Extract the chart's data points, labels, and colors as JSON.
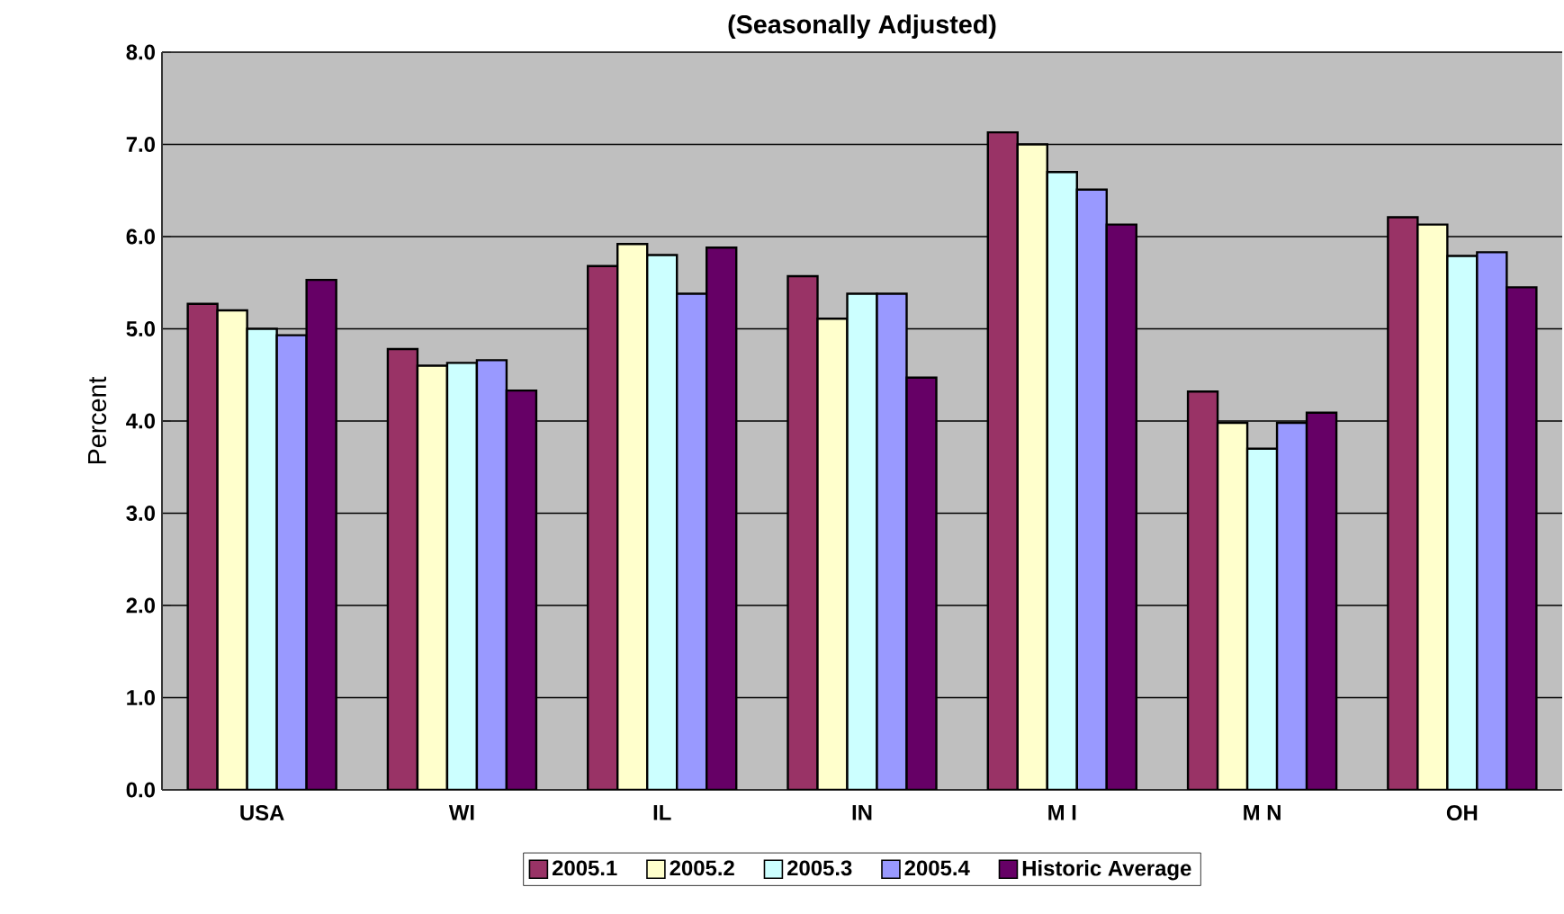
{
  "chart_data": {
    "type": "bar",
    "title": "(Seasonally Adjusted)",
    "ylabel": "Percent",
    "categories": [
      "USA",
      "WI",
      "IL",
      "IN",
      "M I",
      "M N",
      "OH"
    ],
    "series": [
      {
        "name": "2005.1",
        "color": "#993366",
        "values": [
          5.27,
          4.78,
          5.68,
          5.57,
          7.13,
          4.32,
          6.21
        ]
      },
      {
        "name": "2005.2",
        "color": "#ffffcc",
        "values": [
          5.2,
          4.6,
          5.92,
          5.11,
          7.0,
          3.98,
          6.13
        ]
      },
      {
        "name": "2005.3",
        "color": "#ccffff",
        "values": [
          5.0,
          4.63,
          5.8,
          5.38,
          6.7,
          3.7,
          5.79
        ]
      },
      {
        "name": "2005.4",
        "color": "#9999ff",
        "values": [
          4.93,
          4.66,
          5.38,
          5.38,
          6.51,
          3.98,
          5.83
        ]
      },
      {
        "name": "Historic Average",
        "color": "#660066",
        "values": [
          5.53,
          4.33,
          5.88,
          4.47,
          6.13,
          4.09,
          5.45
        ]
      }
    ],
    "ylim": [
      0,
      8
    ],
    "yticks": [
      {
        "value": 0,
        "label": "0.0"
      },
      {
        "value": 1,
        "label": "1.0"
      },
      {
        "value": 2,
        "label": "2.0"
      },
      {
        "value": 3,
        "label": "3.0"
      },
      {
        "value": 4,
        "label": "4.0"
      },
      {
        "value": 5,
        "label": "5.0"
      },
      {
        "value": 6,
        "label": "6.0"
      },
      {
        "value": 7,
        "label": "7.0"
      },
      {
        "value": 8,
        "label": "8.0"
      }
    ],
    "grid": "y",
    "legend": "bottom"
  }
}
